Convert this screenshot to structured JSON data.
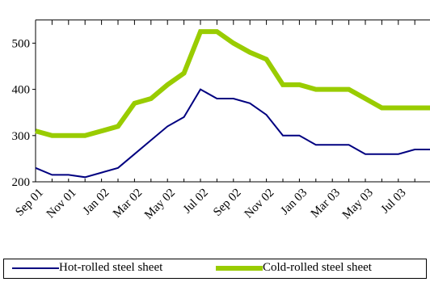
{
  "chart_data": {
    "type": "line",
    "x": [
      "Sep 01",
      "Oct 01",
      "Nov 01",
      "Dec 01",
      "Jan 02",
      "Feb 02",
      "Mar 02",
      "Apr 02",
      "May 02",
      "Jun 02",
      "Jul 02",
      "Aug 02",
      "Sep 02",
      "Oct 02",
      "Nov 02",
      "Dec 02",
      "Jan 03",
      "Feb 03",
      "Mar 03",
      "Apr 03",
      "May 03",
      "Jun 03",
      "Jul 03",
      "Aug 03",
      "Sep 03"
    ],
    "x_tick_labels": [
      "Sep 01",
      "Nov 01",
      "Jan 02",
      "Mar 02",
      "May 02",
      "Jul 02",
      "Sep 02",
      "Nov 02",
      "Jan 03",
      "Mar 03",
      "May 03",
      "Jul 03"
    ],
    "y_ticks": [
      "200",
      "300",
      "400",
      "500"
    ],
    "ylim": [
      200,
      550
    ],
    "grid": false,
    "legend_position": "bottom",
    "series": [
      {
        "name": "Hot-rolled steel sheet",
        "color": "#000080",
        "values": [
          230,
          215,
          215,
          210,
          220,
          230,
          260,
          290,
          320,
          340,
          400,
          380,
          380,
          370,
          345,
          300,
          300,
          280,
          280,
          280,
          260,
          260,
          260,
          270,
          270
        ]
      },
      {
        "name": "Cold-rolled steel sheet",
        "color": "#99cc00",
        "values": [
          310,
          300,
          300,
          300,
          310,
          320,
          370,
          380,
          410,
          435,
          525,
          525,
          500,
          480,
          465,
          410,
          410,
          400,
          400,
          400,
          380,
          360,
          360,
          360,
          360
        ]
      }
    ]
  }
}
